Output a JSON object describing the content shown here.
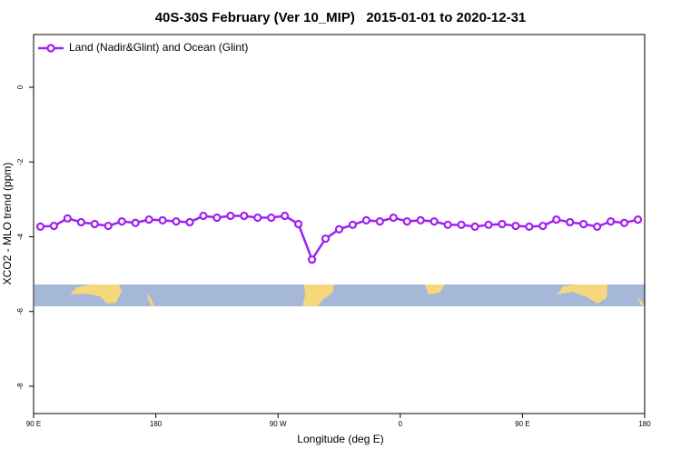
{
  "chart_data": {
    "type": "line",
    "title": "40S-30S February (Ver 10_MIP)   2015-01-01 to 2020-12-31",
    "xlabel": "Longitude (deg E)",
    "ylabel": "XCO2 - MLO trend (ppm)",
    "x": [
      95,
      105,
      115,
      125,
      135,
      145,
      155,
      165,
      175,
      185,
      195,
      205,
      215,
      225,
      235,
      245,
      255,
      265,
      275,
      285,
      295,
      305,
      315,
      325,
      335,
      345,
      355,
      365,
      375,
      385,
      395,
      405,
      415,
      425,
      435,
      445,
      455,
      465,
      475,
      485,
      495,
      505,
      515,
      525,
      535
    ],
    "series": [
      {
        "name": "Land (Nadir&Glint) and Ocean (Glint)",
        "color": "#a020f0",
        "values": [
          -3.73,
          -3.71,
          -3.51,
          -3.61,
          -3.66,
          -3.71,
          -3.59,
          -3.63,
          -3.54,
          -3.56,
          -3.59,
          -3.61,
          -3.44,
          -3.49,
          -3.44,
          -3.44,
          -3.49,
          -3.49,
          -3.44,
          -3.66,
          -4.61,
          -4.05,
          -3.8,
          -3.68,
          -3.56,
          -3.59,
          -3.49,
          -3.59,
          -3.56,
          -3.59,
          -3.68,
          -3.68,
          -3.73,
          -3.68,
          -3.66,
          -3.71,
          -3.73,
          -3.71,
          -3.54,
          -3.61,
          -3.66,
          -3.73,
          -3.59,
          -3.63,
          -3.54
        ]
      }
    ],
    "xlim": [
      90,
      540
    ],
    "xticks": [
      {
        "value": 90,
        "label": "90 E"
      },
      180,
      {
        "value": 270,
        "label": "90 W"
      },
      {
        "value": 360,
        "label": "0"
      },
      {
        "value": 450,
        "label": "90 E"
      },
      {
        "value": 540,
        "label": "180"
      }
    ],
    "ylim": [
      -8.73,
      1.41
    ],
    "yticks": [
      0,
      -2,
      -4,
      -6,
      -8
    ],
    "legend": "top-left"
  }
}
